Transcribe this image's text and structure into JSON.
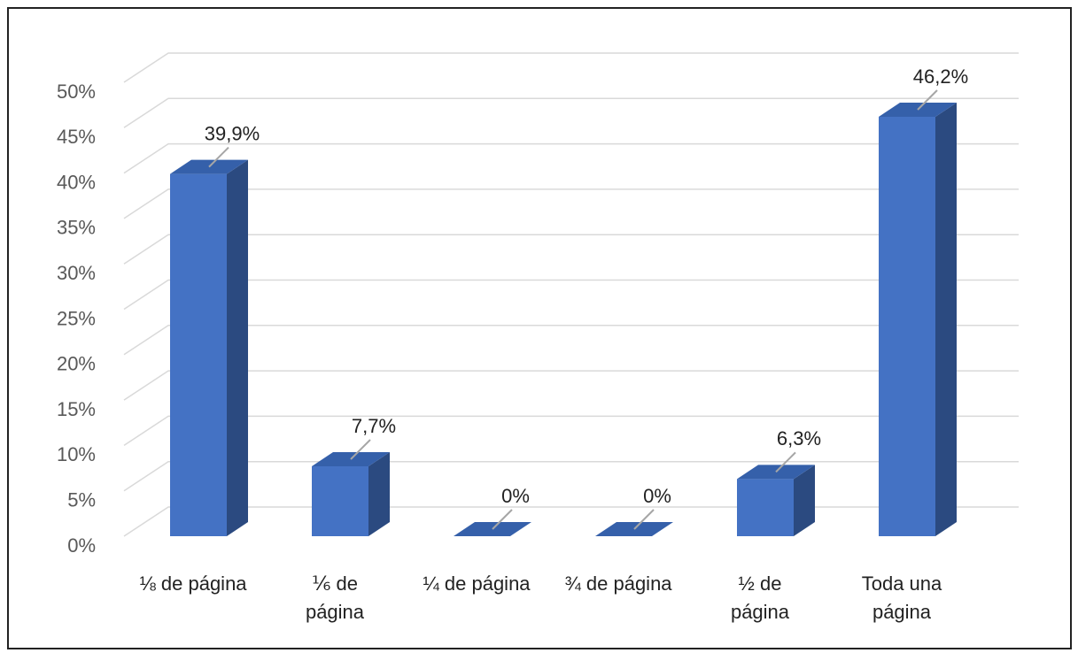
{
  "chart_data": {
    "type": "bar3d",
    "categories": [
      "⅛ de página",
      "⅙ de\npágina",
      "¼ de página",
      "¾ de página",
      "½ de\npágina",
      "Toda una\npágina"
    ],
    "values": [
      39.9,
      7.7,
      0,
      0,
      6.3,
      46.2
    ],
    "value_labels": [
      "39,9%",
      "7,7%",
      "0%",
      "0%",
      "6,3%",
      "46,2%"
    ],
    "color": "#4472c4",
    "ylim": [
      0,
      50
    ],
    "yticks": [
      {
        "value": 0,
        "label": "0%"
      },
      {
        "value": 5,
        "label": "5%"
      },
      {
        "value": 10,
        "label": "10%"
      },
      {
        "value": 15,
        "label": "15%"
      },
      {
        "value": 20,
        "label": "20%"
      },
      {
        "value": 25,
        "label": "25%"
      },
      {
        "value": 30,
        "label": "30%"
      },
      {
        "value": 35,
        "label": "35%"
      },
      {
        "value": 40,
        "label": "40%"
      },
      {
        "value": 45,
        "label": "45%"
      },
      {
        "value": 50,
        "label": "50%"
      }
    ],
    "grid": true
  }
}
